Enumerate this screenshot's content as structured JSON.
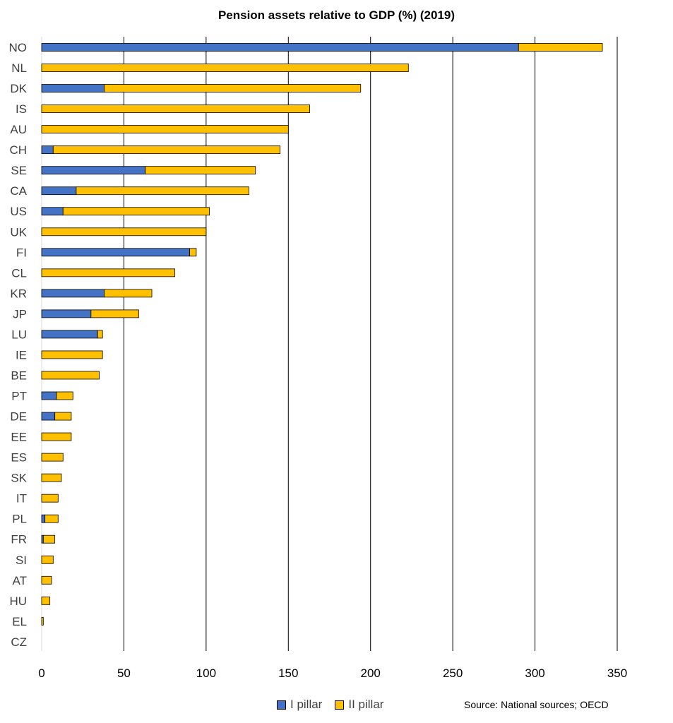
{
  "chart_data": {
    "type": "bar",
    "orientation": "horizontal",
    "stacked": true,
    "title": "Pension assets relative to GDP (%) (2019)",
    "categories": [
      "NO",
      "NL",
      "DK",
      "IS",
      "AU",
      "CH",
      "SE",
      "CA",
      "US",
      "UK",
      "FI",
      "CL",
      "KR",
      "JP",
      "LU",
      "IE",
      "BE",
      "PT",
      "DE",
      "EE",
      "ES",
      "SK",
      "IT",
      "PL",
      "FR",
      "SI",
      "AT",
      "HU",
      "EL",
      "CZ"
    ],
    "series": [
      {
        "name": "I pillar",
        "color": "#4472C4",
        "values": [
          290,
          0,
          38,
          0,
          0,
          7,
          63,
          21,
          13,
          0,
          90,
          0,
          38,
          30,
          34,
          0,
          0,
          9,
          8,
          0,
          0,
          0,
          0,
          2,
          1,
          0,
          0,
          0,
          0,
          0
        ]
      },
      {
        "name": "II pillar",
        "color": "#FFC000",
        "values": [
          51,
          223,
          156,
          163,
          150,
          138,
          67,
          105,
          89,
          100,
          4,
          81,
          29,
          29,
          3,
          37,
          35,
          10,
          10,
          18,
          13,
          12,
          10,
          8,
          7,
          7,
          6,
          5,
          1,
          0
        ]
      }
    ],
    "xlim": [
      0,
      350
    ],
    "xticks": [
      "0",
      "50",
      "100",
      "150",
      "200",
      "250",
      "300",
      "350"
    ],
    "grid": "vertical",
    "legend_position": "bottom"
  },
  "source": "Source: National sources; OECD"
}
